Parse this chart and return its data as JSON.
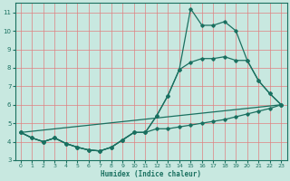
{
  "xlabel": "Humidex (Indice chaleur)",
  "background_color": "#c8e8e0",
  "grid_color": "#e08080",
  "line_color": "#1a7060",
  "xlim": [
    -0.5,
    23.5
  ],
  "ylim": [
    3,
    11.5
  ],
  "xticks": [
    0,
    1,
    2,
    3,
    4,
    5,
    6,
    7,
    8,
    9,
    10,
    11,
    12,
    13,
    14,
    15,
    16,
    17,
    18,
    19,
    20,
    21,
    22,
    23
  ],
  "yticks": [
    3,
    4,
    5,
    6,
    7,
    8,
    9,
    10,
    11
  ],
  "lines": [
    {
      "x": [
        0,
        23
      ],
      "y": [
        4.5,
        6.0
      ]
    },
    {
      "x": [
        0,
        1,
        2,
        3,
        4,
        5,
        6,
        7,
        8,
        9,
        10,
        11,
        12,
        13,
        14,
        15,
        16,
        17,
        18,
        19,
        20,
        21,
        22,
        23
      ],
      "y": [
        4.5,
        4.2,
        4.0,
        4.2,
        3.9,
        3.7,
        3.55,
        3.5,
        3.7,
        4.1,
        4.5,
        4.5,
        4.7,
        4.7,
        4.8,
        4.9,
        5.0,
        5.1,
        5.2,
        5.35,
        5.5,
        5.65,
        5.8,
        6.0
      ]
    },
    {
      "x": [
        0,
        1,
        2,
        3,
        4,
        5,
        6,
        7,
        8,
        9,
        10,
        11,
        12,
        13,
        14,
        15,
        16,
        17,
        18,
        19,
        20,
        21,
        22,
        23
      ],
      "y": [
        4.5,
        4.2,
        4.0,
        4.2,
        3.9,
        3.7,
        3.55,
        3.5,
        3.7,
        4.1,
        4.5,
        4.5,
        5.4,
        6.5,
        7.9,
        8.3,
        8.5,
        8.5,
        8.6,
        8.4,
        8.4,
        7.3,
        6.6,
        6.0
      ]
    },
    {
      "x": [
        0,
        1,
        2,
        3,
        4,
        5,
        6,
        7,
        8,
        9,
        10,
        11,
        12,
        13,
        14,
        15,
        16,
        17,
        18,
        19,
        20,
        21,
        22,
        23
      ],
      "y": [
        4.5,
        4.2,
        4.0,
        4.2,
        3.9,
        3.7,
        3.55,
        3.5,
        3.7,
        4.1,
        4.5,
        4.5,
        5.4,
        6.5,
        7.9,
        11.2,
        10.3,
        10.3,
        10.5,
        10.0,
        8.4,
        7.3,
        6.6,
        6.0
      ]
    }
  ]
}
